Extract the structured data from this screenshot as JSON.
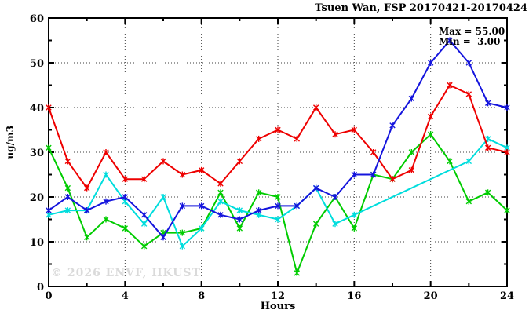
{
  "title": "Tsuen Wan, FSP 20170421-20170424",
  "annotation": {
    "max": "Max = 55.00",
    "min": "Min =  3.00"
  },
  "watermark": "© 2026 ENVF, HKUST",
  "chart_data": {
    "type": "line",
    "title": "Tsuen Wan, FSP 20170421-20170424",
    "xlabel": "Hours",
    "ylabel": "ug/m3",
    "xlim": [
      0,
      24
    ],
    "ylim": [
      0,
      60
    ],
    "grid": true,
    "legend_position": "none",
    "x_major_ticks": [
      0,
      4,
      8,
      12,
      16,
      20,
      24
    ],
    "x_minor_ticks": [
      2,
      6,
      10,
      14,
      18,
      22
    ],
    "y_major_ticks": [
      0,
      10,
      20,
      30,
      40,
      50,
      60
    ],
    "y_minor_ticks": [
      5,
      15,
      25,
      35,
      45,
      55
    ],
    "x": [
      0,
      1,
      2,
      3,
      4,
      5,
      6,
      7,
      8,
      9,
      10,
      11,
      12,
      13,
      14,
      15,
      16,
      17,
      18,
      19,
      20,
      21,
      22,
      23,
      24
    ],
    "series": [
      {
        "name": "green-series",
        "color": "#00cc00",
        "values": [
          31,
          22,
          11,
          15,
          13,
          9,
          12,
          12,
          13,
          21,
          13,
          21,
          20,
          3,
          14,
          20,
          13,
          25,
          24,
          30,
          34,
          28,
          19,
          21,
          17
        ]
      },
      {
        "name": "cyan-series",
        "color": "#00dddd",
        "values": [
          16,
          17,
          17,
          25,
          19,
          14,
          20,
          9,
          13,
          19,
          17,
          16,
          15,
          18,
          22,
          14,
          16,
          null,
          null,
          null,
          null,
          null,
          28,
          33,
          31
        ]
      },
      {
        "name": "red-series",
        "color": "#ee0000",
        "values": [
          40,
          28,
          22,
          30,
          24,
          24,
          28,
          25,
          26,
          23,
          28,
          33,
          35,
          33,
          40,
          34,
          35,
          30,
          24,
          26,
          38,
          45,
          43,
          31,
          30
        ]
      },
      {
        "name": "blue-series",
        "color": "#1414dd",
        "values": [
          17,
          20,
          17,
          19,
          20,
          16,
          11,
          18,
          18,
          16,
          15,
          17,
          18,
          18,
          22,
          20,
          25,
          25,
          36,
          42,
          50,
          55,
          50,
          41,
          40
        ]
      }
    ],
    "stats": {
      "max": 55.0,
      "min": 3.0
    }
  }
}
